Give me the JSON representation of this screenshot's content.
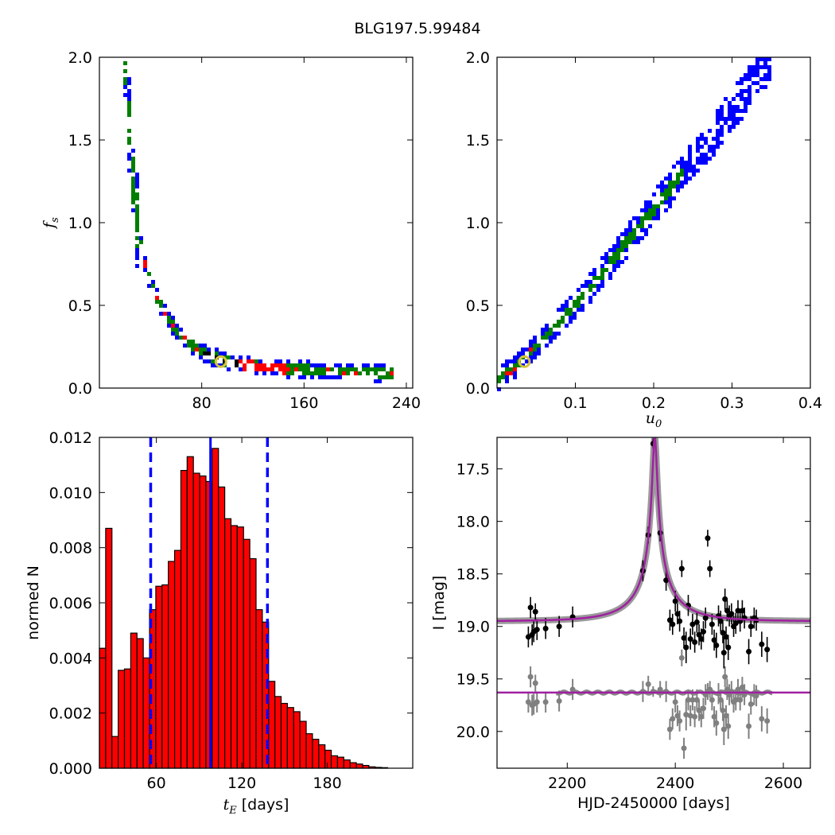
{
  "figure_title": "BLG197.5.99484",
  "chart_data": [
    {
      "panel": "top-left",
      "type": "heatmap",
      "xlabel": "",
      "ylabel_symbol": "f",
      "ylabel_sub": "s",
      "xlim": [
        0,
        245
      ],
      "ylim": [
        0,
        2.0
      ],
      "xticks": [
        80,
        160,
        240
      ],
      "xtick_labels": [
        "80",
        "160",
        "240"
      ],
      "yticks": [
        0,
        0.5,
        1.0,
        1.5,
        2.0
      ],
      "ytick_labels": [
        "0.0",
        "0.5",
        "1.0",
        "1.5",
        "2.0"
      ],
      "colors": {
        "outer": "#0000ff",
        "middle": "#007f00",
        "inner": "#ff0000",
        "core": "#000000",
        "best": "#d4c43a"
      },
      "best_fit": {
        "x": 95,
        "y": 0.16
      },
      "band_tE": [
        20.5,
        22,
        24,
        26,
        28,
        30,
        33,
        36,
        40,
        45,
        50,
        55,
        60,
        66,
        72,
        80,
        88,
        96,
        105,
        115,
        125,
        140,
        160,
        180,
        200,
        220,
        230
      ],
      "band_fs": [
        2.0,
        1.75,
        1.5,
        1.3,
        1.12,
        0.98,
        0.85,
        0.74,
        0.64,
        0.55,
        0.47,
        0.41,
        0.35,
        0.3,
        0.26,
        0.22,
        0.19,
        0.17,
        0.15,
        0.14,
        0.13,
        0.12,
        0.11,
        0.1,
        0.095,
        0.09,
        0.085
      ]
    },
    {
      "panel": "top-right",
      "type": "heatmap",
      "xlabel_symbol": "u",
      "xlabel_sub": "0",
      "ylabel": "",
      "xlim": [
        0,
        0.4
      ],
      "ylim": [
        0,
        2.0
      ],
      "xticks": [
        0.1,
        0.2,
        0.3,
        0.4
      ],
      "xtick_labels": [
        "0.1",
        "0.2",
        "0.3",
        "0.4"
      ],
      "yticks": [
        0,
        0.5,
        1.0,
        1.5,
        2.0
      ],
      "ytick_labels": [
        "0.0",
        "0.5",
        "1.0",
        "1.5",
        "2.0"
      ],
      "best_fit": {
        "x": 0.035,
        "y": 0.16
      },
      "band_u0": [
        0.0,
        0.02,
        0.04,
        0.06,
        0.08,
        0.1,
        0.13,
        0.16,
        0.2,
        0.24,
        0.28,
        0.32,
        0.35
      ],
      "band_fs": [
        0.05,
        0.12,
        0.2,
        0.3,
        0.4,
        0.5,
        0.67,
        0.85,
        1.08,
        1.32,
        1.55,
        1.8,
        2.0
      ]
    },
    {
      "panel": "bottom-left",
      "type": "bar",
      "xlabel_symbol": "t",
      "xlabel_sub": "E",
      "xlabel_suffix": " [days]",
      "ylabel": "normed N",
      "xlim": [
        20,
        240
      ],
      "ylim": [
        0,
        0.012
      ],
      "xticks": [
        60,
        120,
        180
      ],
      "xtick_labels": [
        "60",
        "120",
        "180"
      ],
      "yticks": [
        0,
        0.002,
        0.004,
        0.006,
        0.008,
        0.01,
        0.012
      ],
      "ytick_labels": [
        "0.000",
        "0.002",
        "0.004",
        "0.006",
        "0.008",
        "0.010",
        "0.012"
      ],
      "bin_start": 20,
      "bin_width": 4.4,
      "values": [
        0.00435,
        0.0087,
        0.00115,
        0.00355,
        0.0036,
        0.0049,
        0.0047,
        0.004,
        0.00575,
        0.0066,
        0.00665,
        0.0075,
        0.0079,
        0.0108,
        0.0113,
        0.0107,
        0.0106,
        0.0104,
        0.0116,
        0.0102,
        0.00905,
        0.0088,
        0.00875,
        0.0083,
        0.0076,
        0.00575,
        0.0053,
        0.00315,
        0.0026,
        0.00235,
        0.0022,
        0.00205,
        0.0017,
        0.00125,
        0.00105,
        0.00085,
        0.00065,
        0.00045,
        0.0004,
        0.0003,
        0.0002,
        0.00015,
        0.0001,
        5e-05,
        3e-05,
        2e-05
      ],
      "median": 98,
      "lower": 56,
      "upper": 138,
      "bar_color": "#ff0000",
      "line_color": "#0000ff"
    },
    {
      "panel": "bottom-right",
      "type": "scatter",
      "xlabel": "HJD-2450000 [days]",
      "ylabel": "I [mag]",
      "xlim": [
        2070,
        2650
      ],
      "ylim": [
        20.35,
        17.2
      ],
      "xticks": [
        2200,
        2400,
        2600
      ],
      "xtick_labels": [
        "2200",
        "2400",
        "2600"
      ],
      "yticks": [
        17.5,
        18.0,
        18.5,
        19.0,
        19.5,
        20.0
      ],
      "ytick_labels": [
        "17.5",
        "18.0",
        "18.5",
        "19.0",
        "19.5",
        "20.0"
      ],
      "model": {
        "t0": 2362,
        "tE": 97,
        "u0": 0.038,
        "baseline": 18.95,
        "blend_fs": 0.16,
        "resid_baseline": 19.63,
        "color": "#a020a0"
      },
      "data_points": [
        [
          2128,
          19.1,
          0.1
        ],
        [
          2132,
          18.82,
          0.1
        ],
        [
          2135,
          19.08,
          0.1
        ],
        [
          2138,
          19.05,
          0.1
        ],
        [
          2141,
          18.86,
          0.08
        ],
        [
          2144,
          19.03,
          0.1
        ],
        [
          2160,
          19.02,
          0.1
        ],
        [
          2185,
          19.0,
          0.1
        ],
        [
          2210,
          18.91,
          0.1
        ],
        [
          2340,
          18.47,
          0.1
        ],
        [
          2350,
          18.13,
          0.08
        ],
        [
          2359,
          17.26,
          0.05
        ],
        [
          2372,
          18.11,
          0.08
        ],
        [
          2383,
          18.56,
          0.1
        ],
        [
          2390,
          18.94,
          0.1
        ],
        [
          2395,
          18.98,
          0.1
        ],
        [
          2400,
          18.76,
          0.1
        ],
        [
          2404,
          18.88,
          0.1
        ],
        [
          2408,
          18.95,
          0.1
        ],
        [
          2412,
          18.45,
          0.08
        ],
        [
          2416,
          19.11,
          0.1
        ],
        [
          2420,
          19.2,
          0.15
        ],
        [
          2424,
          18.8,
          0.1
        ],
        [
          2428,
          19.12,
          0.1
        ],
        [
          2432,
          18.98,
          0.1
        ],
        [
          2436,
          19.15,
          0.1
        ],
        [
          2440,
          18.96,
          0.1
        ],
        [
          2444,
          19.08,
          0.1
        ],
        [
          2448,
          19.12,
          0.1
        ],
        [
          2452,
          19.05,
          0.1
        ],
        [
          2456,
          18.92,
          0.1
        ],
        [
          2460,
          18.16,
          0.08
        ],
        [
          2464,
          18.45,
          0.08
        ],
        [
          2468,
          18.98,
          0.1
        ],
        [
          2472,
          19.13,
          0.1
        ],
        [
          2476,
          19.18,
          0.12
        ],
        [
          2480,
          18.9,
          0.1
        ],
        [
          2484,
          18.95,
          0.1
        ],
        [
          2488,
          19.06,
          0.1
        ],
        [
          2490,
          19.25,
          0.15
        ],
        [
          2492,
          18.74,
          0.1
        ],
        [
          2494,
          19.1,
          0.1
        ],
        [
          2496,
          18.85,
          0.1
        ],
        [
          2498,
          19.2,
          0.12
        ],
        [
          2500,
          18.9,
          0.1
        ],
        [
          2504,
          18.88,
          0.1
        ],
        [
          2508,
          19.0,
          0.1
        ],
        [
          2512,
          18.97,
          0.1
        ],
        [
          2516,
          18.85,
          0.1
        ],
        [
          2520,
          18.95,
          0.1
        ],
        [
          2524,
          18.85,
          0.1
        ],
        [
          2528,
          18.92,
          0.1
        ],
        [
          2536,
          19.24,
          0.12
        ],
        [
          2540,
          19.0,
          0.1
        ],
        [
          2546,
          18.92,
          0.1
        ],
        [
          2550,
          18.94,
          0.1
        ],
        [
          2560,
          19.17,
          0.12
        ],
        [
          2570,
          19.22,
          0.12
        ]
      ],
      "residual_points": [
        [
          2128,
          19.72,
          0.1
        ],
        [
          2132,
          19.48,
          0.1
        ],
        [
          2135,
          19.75,
          0.1
        ],
        [
          2138,
          19.74,
          0.1
        ],
        [
          2141,
          19.54,
          0.08
        ],
        [
          2144,
          19.72,
          0.1
        ],
        [
          2160,
          19.72,
          0.1
        ],
        [
          2185,
          19.71,
          0.1
        ],
        [
          2210,
          19.6,
          0.1
        ],
        [
          2340,
          19.62,
          0.1
        ],
        [
          2350,
          19.55,
          0.08
        ],
        [
          2359,
          19.62,
          0.05
        ],
        [
          2372,
          19.6,
          0.08
        ],
        [
          2383,
          19.62,
          0.1
        ],
        [
          2390,
          19.98,
          0.1
        ],
        [
          2395,
          19.88,
          0.1
        ],
        [
          2400,
          19.72,
          0.1
        ],
        [
          2404,
          19.85,
          0.1
        ],
        [
          2408,
          19.9,
          0.1
        ],
        [
          2412,
          19.3,
          0.08
        ],
        [
          2416,
          20.16,
          0.1
        ],
        [
          2420,
          19.84,
          0.15
        ],
        [
          2424,
          19.7,
          0.1
        ],
        [
          2428,
          19.85,
          0.1
        ],
        [
          2432,
          19.7,
          0.1
        ],
        [
          2436,
          19.86,
          0.1
        ],
        [
          2440,
          19.7,
          0.1
        ],
        [
          2444,
          19.8,
          0.1
        ],
        [
          2448,
          19.86,
          0.1
        ],
        [
          2452,
          19.78,
          0.1
        ],
        [
          2456,
          19.65,
          0.1
        ],
        [
          2460,
          19.62,
          0.08
        ],
        [
          2464,
          19.6,
          0.08
        ],
        [
          2468,
          19.7,
          0.1
        ],
        [
          2472,
          19.86,
          0.1
        ],
        [
          2476,
          19.92,
          0.12
        ],
        [
          2480,
          19.64,
          0.1
        ],
        [
          2484,
          19.7,
          0.1
        ],
        [
          2488,
          19.8,
          0.1
        ],
        [
          2490,
          19.98,
          0.15
        ],
        [
          2492,
          19.48,
          0.1
        ],
        [
          2494,
          19.85,
          0.1
        ],
        [
          2496,
          19.6,
          0.1
        ],
        [
          2498,
          19.95,
          0.12
        ],
        [
          2500,
          19.65,
          0.1
        ],
        [
          2504,
          19.62,
          0.1
        ],
        [
          2508,
          19.72,
          0.1
        ],
        [
          2512,
          19.7,
          0.1
        ],
        [
          2516,
          19.6,
          0.1
        ],
        [
          2520,
          19.7,
          0.1
        ],
        [
          2524,
          19.58,
          0.1
        ],
        [
          2528,
          19.65,
          0.1
        ],
        [
          2536,
          19.95,
          0.12
        ],
        [
          2540,
          19.74,
          0.1
        ],
        [
          2546,
          19.65,
          0.1
        ],
        [
          2550,
          19.66,
          0.1
        ],
        [
          2560,
          19.88,
          0.12
        ],
        [
          2570,
          19.9,
          0.12
        ]
      ]
    }
  ]
}
